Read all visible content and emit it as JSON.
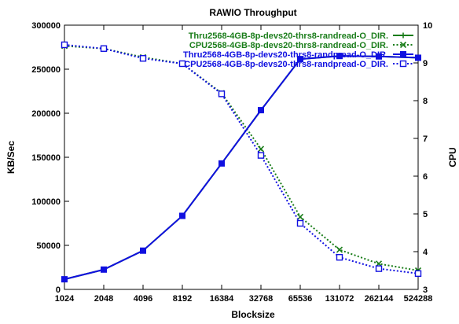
{
  "chart_data": {
    "type": "line",
    "title": "RAWIO Throughput",
    "xlabel": "Blocksize",
    "ylabel": "KB/Sec",
    "y2label": "CPU",
    "x_scale": "log2",
    "categories": [
      "1024",
      "2048",
      "4096",
      "8192",
      "16384",
      "32768",
      "65536",
      "131072",
      "262144",
      "524288"
    ],
    "x": [
      1024,
      2048,
      4096,
      8192,
      16384,
      32768,
      65536,
      131072,
      262144,
      524288
    ],
    "ylim": [
      0,
      300000
    ],
    "yticks": [
      "0",
      "50000",
      "100000",
      "150000",
      "200000",
      "250000",
      "300000"
    ],
    "y2lim": [
      3,
      10
    ],
    "y2ticks": [
      "3",
      "4",
      "5",
      "6",
      "7",
      "8",
      "9",
      "10"
    ],
    "grid": false,
    "legend_position": "top-right",
    "series": [
      {
        "name": "Thru2568-4GB-8p-devs20-thrs8-randread-O_DIR.",
        "axis": "left",
        "color": "#1a7d1a",
        "line_style": "solid",
        "marker": "plus",
        "values": [
          11500,
          22500,
          44000,
          83500,
          143000,
          203500,
          261500,
          265000,
          264500,
          263000
        ]
      },
      {
        "name": "CPU2568-4GB-8p-devs20-thrs8-randread-O_DIR.",
        "axis": "right",
        "color": "#1a7d1a",
        "line_style": "dotted",
        "marker": "x",
        "values": [
          9.45,
          9.38,
          9.15,
          8.98,
          8.2,
          6.72,
          4.92,
          4.05,
          3.68,
          3.5
        ]
      },
      {
        "name": "Thru2568-4GB-8p-devs20-thrs8-randpread-O_DIR.",
        "axis": "left",
        "color": "#1010e0",
        "line_style": "solid",
        "marker": "filled-square",
        "values": [
          11500,
          22500,
          44000,
          83500,
          143000,
          203500,
          261500,
          265000,
          264500,
          263000
        ]
      },
      {
        "name": "CPU2568-4GB-8p-devs20-thrs8-randpread-O_DIR.",
        "axis": "right",
        "color": "#1010e0",
        "line_style": "dotted",
        "marker": "open-square",
        "values": [
          9.48,
          9.38,
          9.12,
          8.98,
          8.18,
          6.55,
          4.75,
          3.85,
          3.55,
          3.42
        ]
      }
    ]
  }
}
